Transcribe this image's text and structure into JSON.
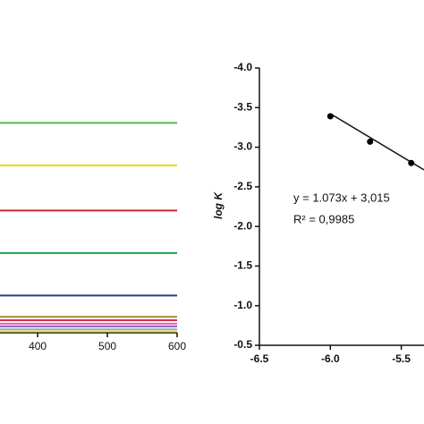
{
  "chart_data": [
    {
      "type": "line",
      "x": [
        346,
        600
      ],
      "xlim": [
        346,
        600
      ],
      "xticks": [
        400,
        500,
        600
      ],
      "ylim": [
        0,
        1
      ],
      "series": [
        {
          "color": "#56b94a",
          "values": [
            0.79,
            0.79
          ]
        },
        {
          "color": "#e6dc00",
          "values": [
            0.63,
            0.63
          ]
        },
        {
          "color": "#c4262e",
          "values": [
            0.46,
            0.46
          ]
        },
        {
          "color": "#22a24a",
          "values": [
            0.3,
            0.3
          ]
        },
        {
          "color": "#2a3a94",
          "values": [
            0.14,
            0.14
          ]
        },
        {
          "color": "#b8863b",
          "values": [
            0.06,
            0.06
          ]
        },
        {
          "color": "#d9304a",
          "values": [
            0.047,
            0.047
          ]
        },
        {
          "color": "#e060c0",
          "values": [
            0.034,
            0.034
          ]
        },
        {
          "color": "#8a5cc0",
          "values": [
            0.024,
            0.024
          ]
        },
        {
          "color": "#a0a8c8",
          "values": [
            0.013,
            0.013
          ]
        },
        {
          "color": "#e2e040",
          "values": [
            0.005,
            0.005
          ]
        }
      ]
    },
    {
      "type": "scatter",
      "y_label": "log K",
      "annotations": [
        "y = 1.073x + 3,015",
        "R² = 0,9985"
      ],
      "xlim": [
        -6.5,
        -5.34
      ],
      "xticks": [
        -6.5,
        {
          "value": -6,
          "label": "-6.0"
        },
        -5.5
      ],
      "ylim": [
        -0.5,
        -4
      ],
      "yticks": [
        {
          "value": -4,
          "label": "-4.0"
        },
        -3.5,
        {
          "value": -3,
          "label": "-3.0"
        },
        -2.5,
        {
          "value": -2,
          "label": "-2.0"
        },
        -1.5,
        {
          "value": -1,
          "label": "-1.0"
        },
        -0.5
      ],
      "x": [
        -6.0,
        -5.72,
        -5.43
      ],
      "values": [
        -3.39,
        -3.07,
        -2.8
      ],
      "color": "#000000",
      "fit": {
        "x": [
          -6.0,
          -5.34
        ],
        "values": [
          -3.423,
          -2.715
        ]
      }
    }
  ]
}
